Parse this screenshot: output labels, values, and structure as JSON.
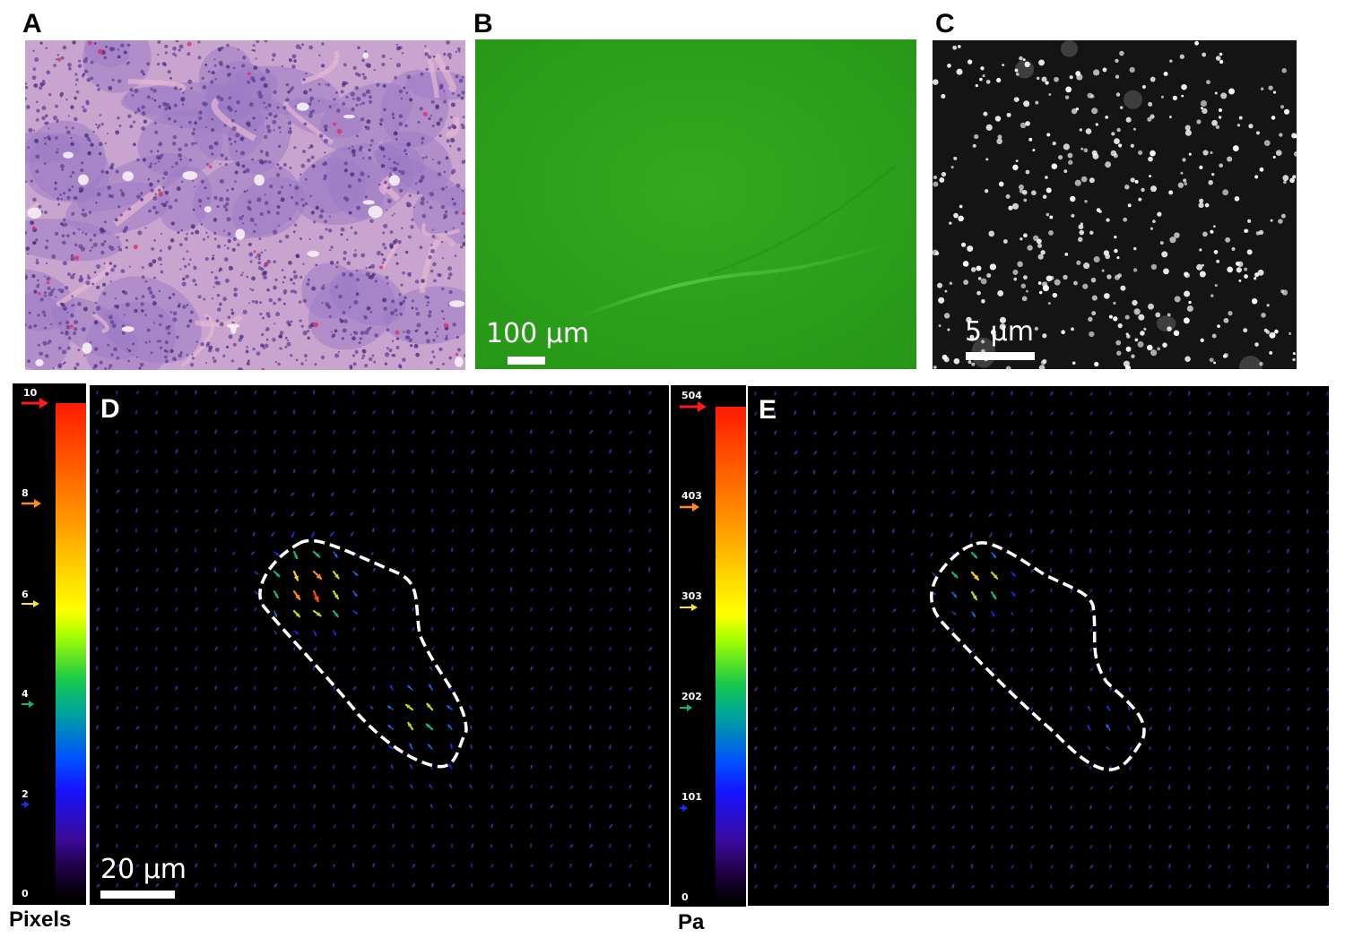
{
  "panels": {
    "a": {
      "letter": "A"
    },
    "b": {
      "letter": "B",
      "scale_label": "100 µm"
    },
    "c": {
      "letter": "C",
      "scale_label": "5 µm"
    },
    "d": {
      "letter": "D",
      "scale_label": "20 µm"
    },
    "e": {
      "letter": "E"
    }
  },
  "colorbar_left": {
    "unit": "Pixels",
    "ticks": [
      "10",
      "8",
      "6",
      "4",
      "2",
      "0"
    ],
    "arrow_colors": [
      "#ff1a1a",
      "#ff8c1a",
      "#ffe81a",
      "#19b46a",
      "#1a2bff"
    ]
  },
  "colorbar_right": {
    "unit": "Pa",
    "ticks": [
      "504",
      "403",
      "303",
      "202",
      "101",
      "0"
    ],
    "arrow_colors": [
      "#ff1a1a",
      "#ff8c1a",
      "#ffe81a",
      "#19b46a",
      "#1a2bff"
    ]
  },
  "colors": {
    "he_background": "#c9a4cf",
    "fluorescence_green": "#2ea31a",
    "bead_white": "#ffffff",
    "outline": "#ffffff"
  }
}
